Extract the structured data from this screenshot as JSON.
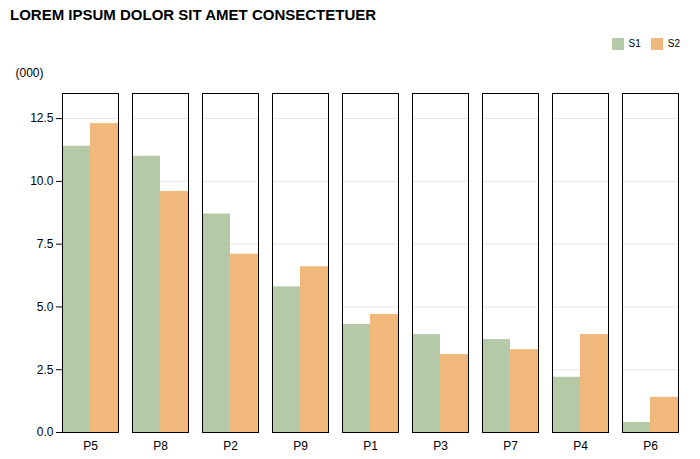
{
  "chart_data": {
    "type": "bar",
    "title": "LOREM IPSUM DOLOR SIT AMET CONSECTETUER",
    "ylabel": "(000)",
    "categories": [
      "P5",
      "P8",
      "P2",
      "P9",
      "P1",
      "P3",
      "P7",
      "P4",
      "P6"
    ],
    "series": [
      {
        "name": "S1",
        "color": "#b5c9a8",
        "values": [
          11.4,
          11.0,
          8.7,
          5.8,
          4.3,
          3.9,
          3.7,
          2.2,
          0.4
        ]
      },
      {
        "name": "S2",
        "color": "#f0b87a",
        "values": [
          12.3,
          9.6,
          7.1,
          6.6,
          4.7,
          3.1,
          3.3,
          3.9,
          1.4
        ]
      }
    ],
    "ylim": [
      0,
      13.5
    ],
    "yticks": [
      {
        "value": 0,
        "label": "0.0"
      },
      2.5,
      {
        "value": 5,
        "label": "5.0"
      },
      7.5,
      {
        "value": 10,
        "label": "10.0"
      },
      12.5
    ],
    "grid": true,
    "legend": "upper right"
  }
}
